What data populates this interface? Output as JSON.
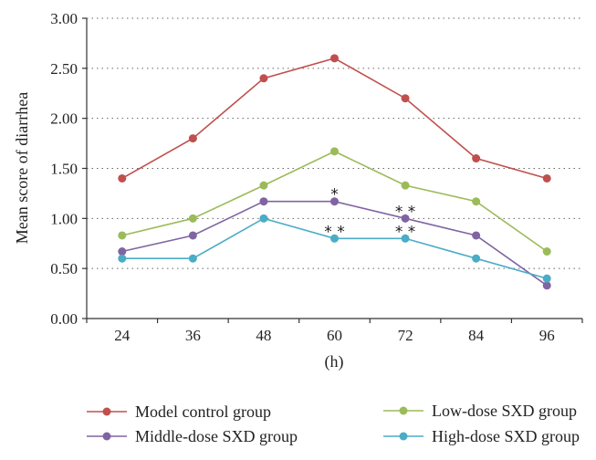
{
  "chart_data": {
    "type": "line",
    "title": "",
    "xlabel": "(h)",
    "ylabel": "Mean score of diarrhea",
    "x": [
      24,
      36,
      48,
      60,
      72,
      84,
      96
    ],
    "x_tick_labels": [
      "24",
      "36",
      "48",
      "60",
      "72",
      "84",
      "96"
    ],
    "ylim": [
      0,
      3.0
    ],
    "y_ticks": [
      0,
      0.5,
      1.0,
      1.5,
      2.0,
      2.5,
      3.0
    ],
    "y_tick_labels": [
      "0.00",
      "0.50",
      "1.00",
      "1.50",
      "2.00",
      "2.50",
      "3.00"
    ],
    "grid": "horizontal dotted",
    "legend_position": "bottom",
    "series": [
      {
        "name": "Model control group",
        "color": "#c0504d",
        "values": [
          1.4,
          1.8,
          2.4,
          2.6,
          2.2,
          1.6,
          1.4
        ]
      },
      {
        "name": "Low-dose SXD group",
        "color": "#9bbb59",
        "values": [
          0.83,
          1.0,
          1.33,
          1.67,
          1.33,
          1.17,
          0.67
        ]
      },
      {
        "name": "Middle-dose SXD group",
        "color": "#8064a2",
        "values": [
          0.67,
          0.83,
          1.17,
          1.17,
          1.0,
          0.83,
          0.33
        ]
      },
      {
        "name": "High-dose SXD group",
        "color": "#4bacc6",
        "values": [
          0.6,
          0.6,
          1.0,
          0.8,
          0.8,
          0.6,
          0.4
        ]
      }
    ],
    "annotations": [
      {
        "text": "*",
        "x": 60,
        "y": 1.17
      },
      {
        "text": "* *",
        "x": 72,
        "y": 1.0
      },
      {
        "text": "* *",
        "x": 60,
        "y": 0.8
      },
      {
        "text": "* *",
        "x": 72,
        "y": 0.8
      }
    ]
  }
}
